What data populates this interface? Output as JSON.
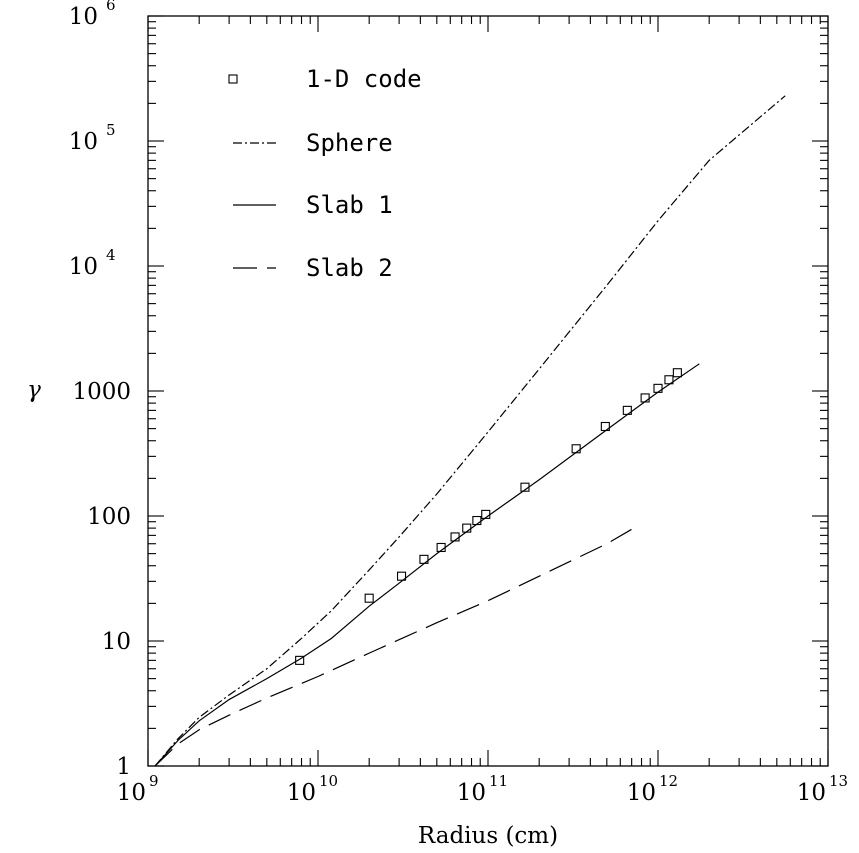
{
  "chart_data": {
    "type": "line",
    "title": "",
    "xlabel": "Radius (cm)",
    "ylabel": "γ",
    "x_scale": "log",
    "y_scale": "log",
    "xlim": [
      1000000000.0,
      10000000000000.0
    ],
    "ylim": [
      1,
      1000000.0
    ],
    "x_ticks": [
      {
        "value": 1000000000.0,
        "base": "10",
        "exp": "9"
      },
      {
        "value": 10000000000.0,
        "base": "10",
        "exp": "10"
      },
      {
        "value": 100000000000.0,
        "base": "10",
        "exp": "11"
      },
      {
        "value": 1000000000000.0,
        "base": "10",
        "exp": "12"
      },
      {
        "value": 10000000000000.0,
        "base": "10",
        "exp": "13"
      }
    ],
    "y_ticks": [
      {
        "value": 1,
        "base": "1",
        "exp": ""
      },
      {
        "value": 10,
        "base": "10",
        "exp": ""
      },
      {
        "value": 100,
        "base": "100",
        "exp": ""
      },
      {
        "value": 1000,
        "base": "1000",
        "exp": ""
      },
      {
        "value": 10000,
        "base": "10",
        "exp": "4"
      },
      {
        "value": 100000,
        "base": "10",
        "exp": "5"
      },
      {
        "value": 1000000,
        "base": "10",
        "exp": "6"
      }
    ],
    "grid": false,
    "legend_position": "top-left",
    "series": [
      {
        "name": "1-D code",
        "style": "markers",
        "marker": "open-square",
        "x": [
          7800000000.0,
          20000000000.0,
          31000000000.0,
          42000000000.0,
          53000000000.0,
          64000000000.0,
          75000000000.0,
          86000000000.0,
          97000000000.0,
          165000000000.0,
          330000000000.0,
          490000000000.0,
          660000000000.0,
          840000000000.0,
          1000000000000.0,
          1160000000000.0,
          1300000000000.0
        ],
        "y": [
          7,
          22,
          33,
          45,
          56,
          68,
          80,
          92,
          103,
          170,
          345,
          520,
          700,
          880,
          1050,
          1230,
          1400
        ]
      },
      {
        "name": "Sphere",
        "style": "dash-dot",
        "x": [
          1100000000.0,
          1500000000.0,
          2000000000.0,
          3000000000.0,
          5000000000.0,
          8000000000.0,
          12000000000.0,
          20000000000.0,
          30000000000.0,
          50000000000.0,
          100000000000.0,
          200000000000.0,
          500000000000.0,
          1000000000000.0,
          2000000000000.0,
          5600000000000.0
        ],
        "y": [
          1,
          1.65,
          2.45,
          3.7,
          6.0,
          10.5,
          17.5,
          37,
          68,
          150,
          470,
          1500,
          7000,
          23000,
          70000,
          230000
        ]
      },
      {
        "name": "Slab 1",
        "style": "solid",
        "x": [
          1100000000.0,
          1500000000.0,
          2000000000.0,
          3000000000.0,
          5000000000.0,
          8000000000.0,
          12000000000.0,
          20000000000.0,
          30000000000.0,
          50000000000.0,
          100000000000.0,
          200000000000.0,
          500000000000.0,
          1000000000000.0,
          1750000000000.0
        ],
        "y": [
          1,
          1.6,
          2.3,
          3.4,
          5.0,
          7.3,
          10.5,
          19,
          29,
          50,
          100,
          195,
          490,
          980,
          1650
        ]
      },
      {
        "name": "Slab 2",
        "style": "long-dash",
        "x": [
          1100000000.0,
          1500000000.0,
          2000000000.0,
          3000000000.0,
          5000000000.0,
          10000000000.0,
          20000000000.0,
          50000000000.0,
          100000000000.0,
          200000000000.0,
          500000000000.0,
          720000000000.0
        ],
        "y": [
          1,
          1.5,
          1.95,
          2.55,
          3.5,
          5.2,
          8.0,
          14,
          21,
          33,
          60,
          80
        ]
      }
    ]
  }
}
